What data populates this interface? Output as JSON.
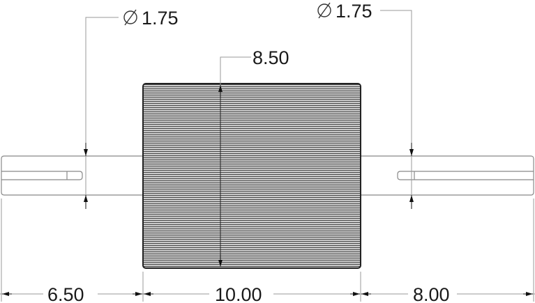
{
  "dimensions": {
    "left_shaft_diameter": "1.75",
    "right_shaft_diameter": "1.75",
    "roller_diameter": "8.50",
    "left_shaft_length": "6.50",
    "roller_length": "10.00",
    "right_shaft_length": "8.00",
    "diameter_symbol": "⌀"
  },
  "colors": {
    "line": "#8a8a8a",
    "outline": "#333333",
    "knurl": "#555555"
  }
}
